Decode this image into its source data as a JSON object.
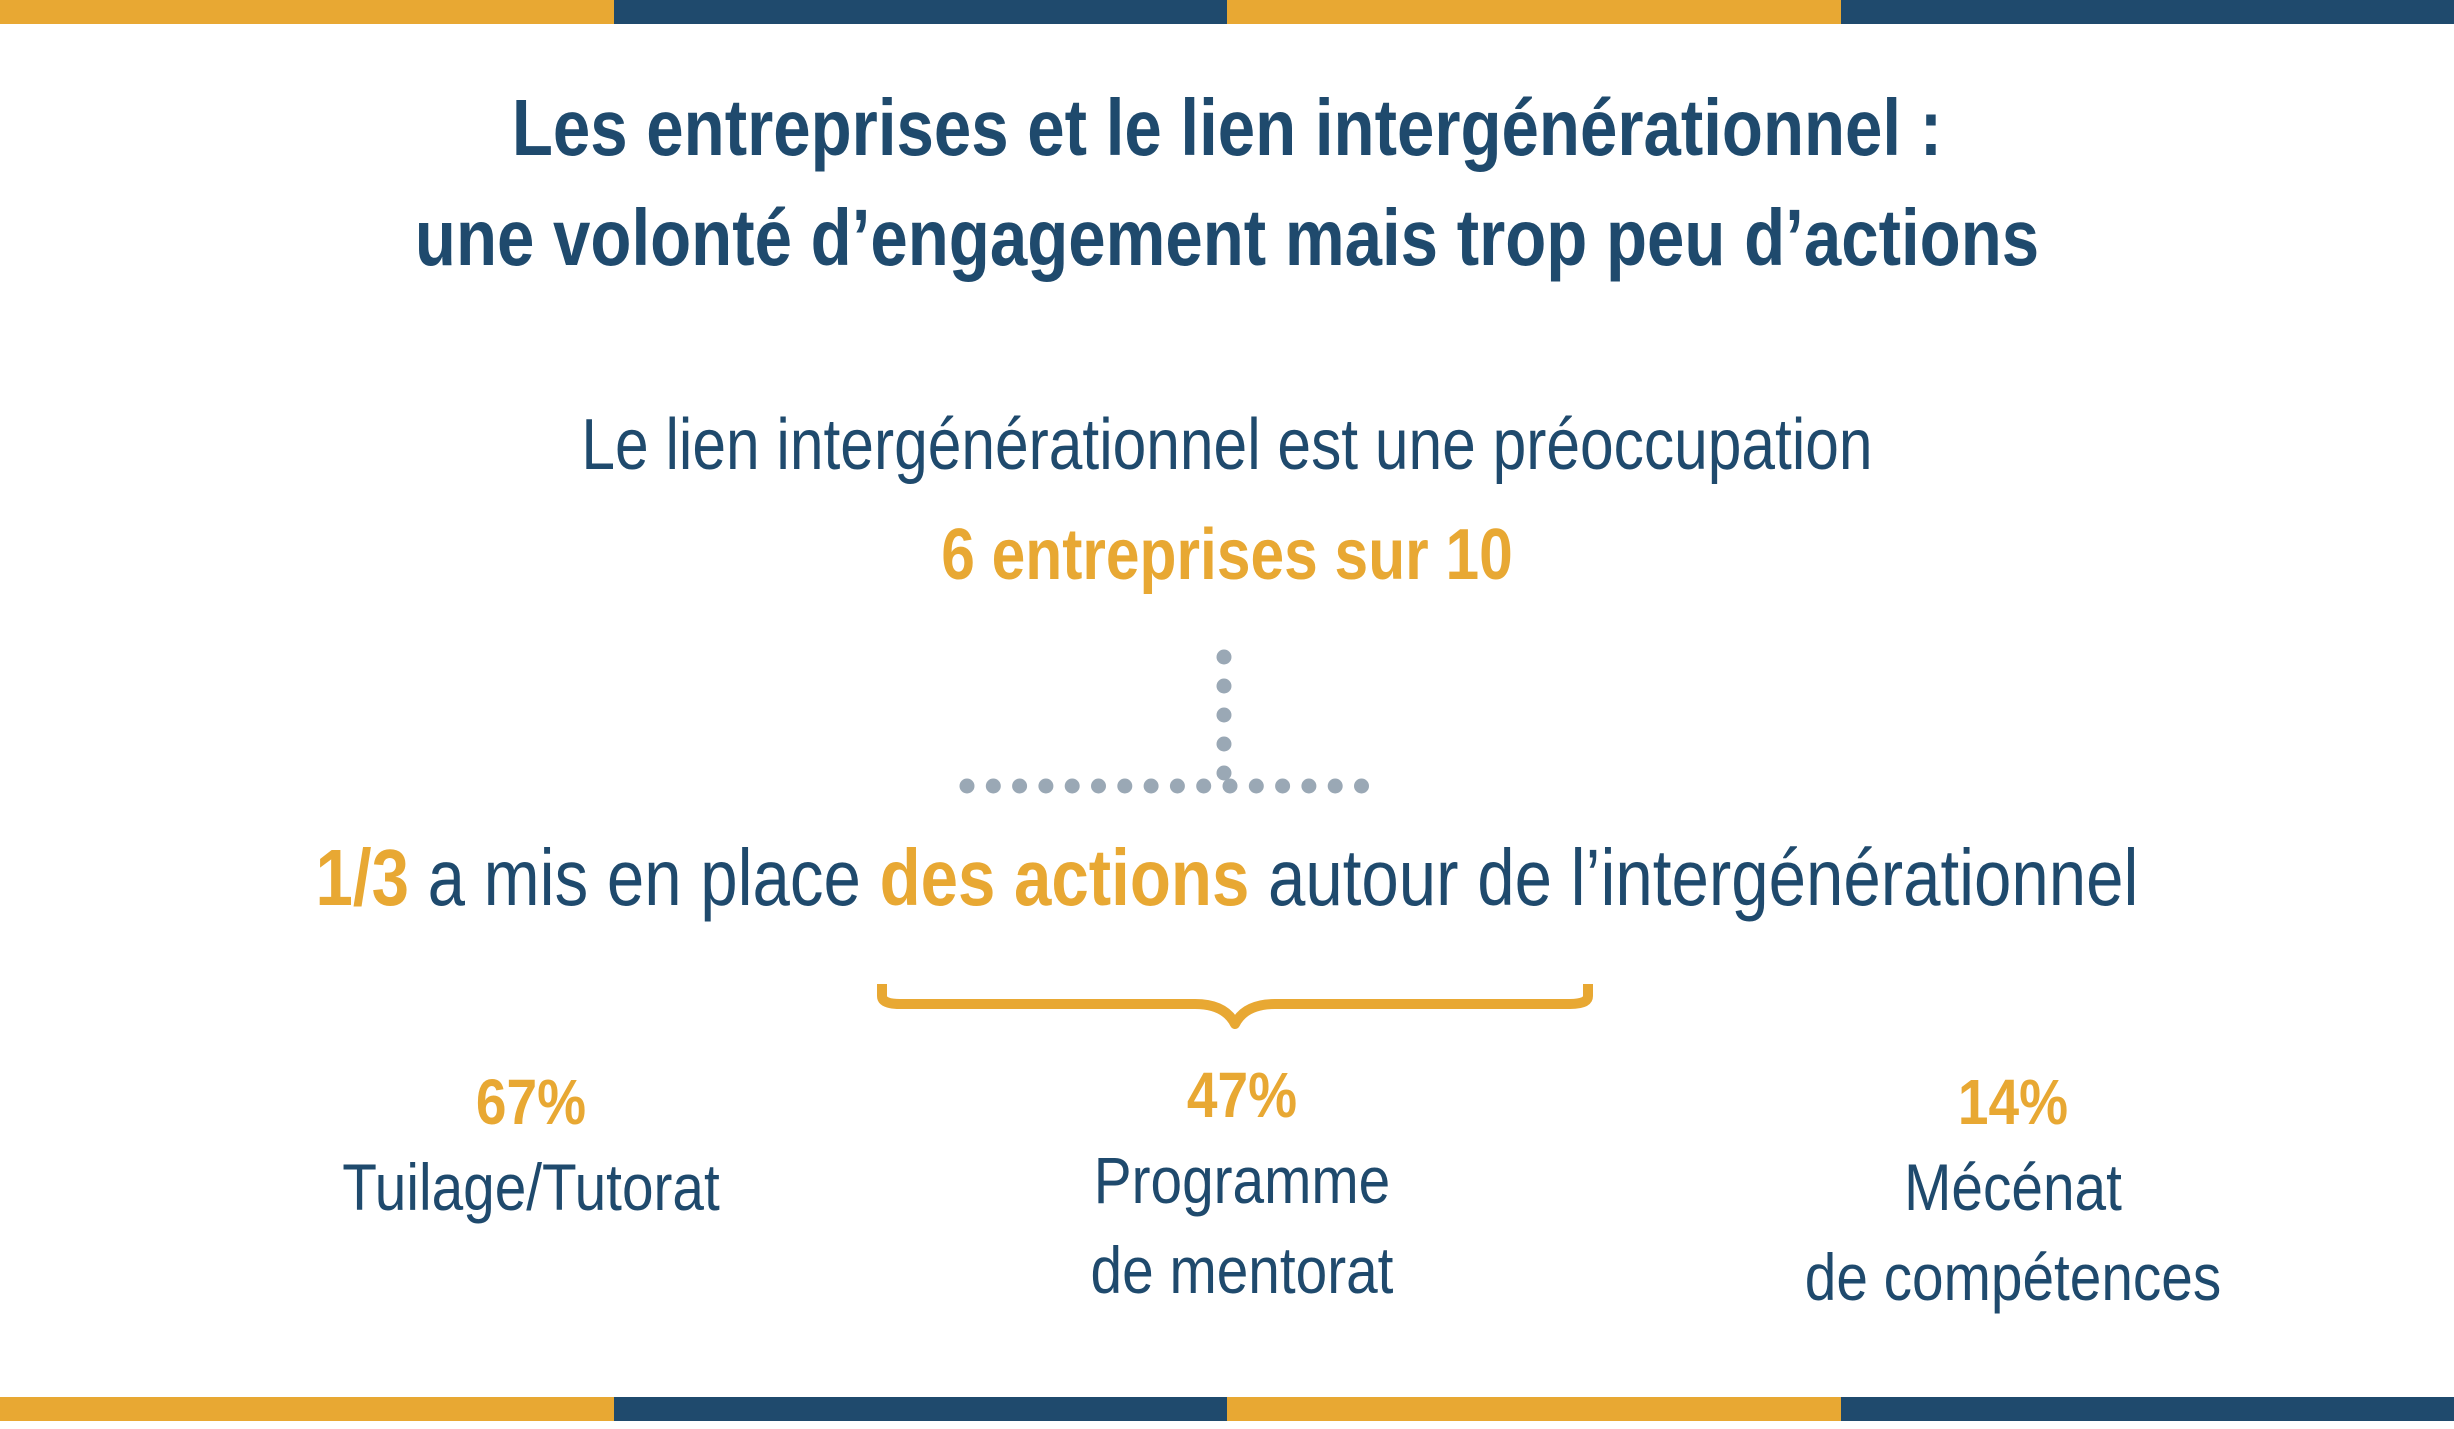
{
  "colors": {
    "navy": "#1f4a6d",
    "gold": "#e8a833",
    "dots": "#9aa8b5"
  },
  "title": {
    "line1": "Les entreprises et le lien intergénérationnel :",
    "line2": "une volonté d’engagement mais trop peu d’actions"
  },
  "concern": {
    "text": "Le lien intergénérationnel est une préoccupation",
    "highlight": "6 entreprises sur 10"
  },
  "actions": {
    "fraction": "1/3",
    "middle": " a mis en place ",
    "highlight": "des actions",
    "end": " autour de l’intergénérationnel"
  },
  "stats": [
    {
      "value": "67%",
      "label_lines": [
        "Tuilage/Tutorat"
      ]
    },
    {
      "value": "47%",
      "label_lines": [
        "Programme",
        "de mentorat"
      ]
    },
    {
      "value": "14%",
      "label_lines": [
        "Mécénat",
        "de compétences"
      ]
    }
  ]
}
